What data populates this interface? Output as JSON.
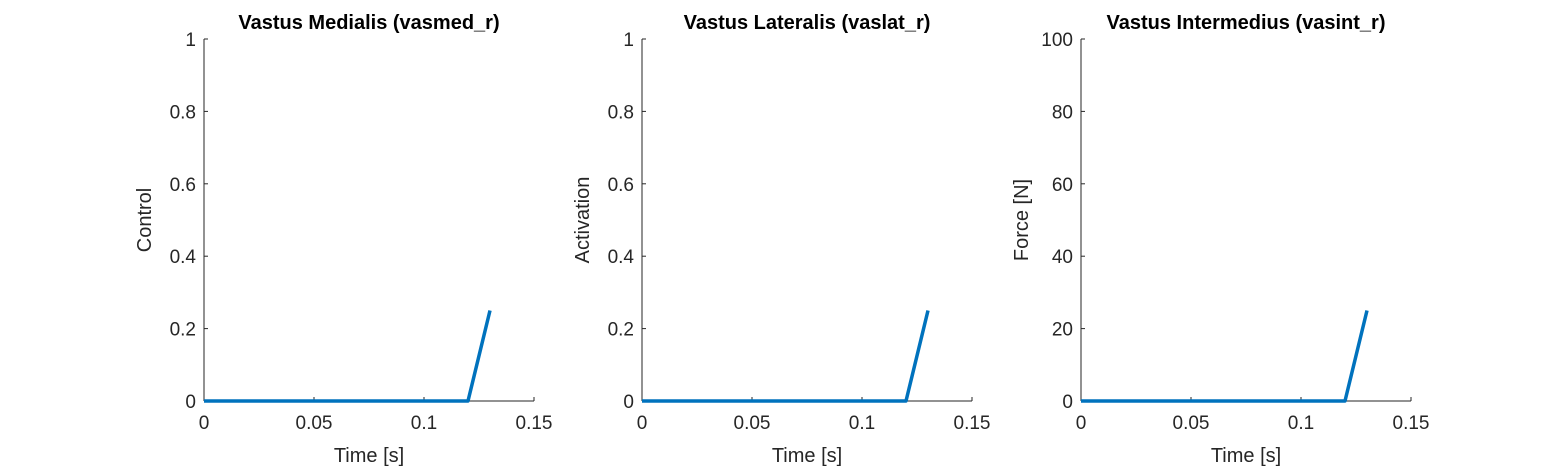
{
  "chart_data": [
    {
      "type": "line",
      "title": "Vastus Medialis (vasmed_r)",
      "xlabel": "Time [s]",
      "ylabel": "Control",
      "xlim": [
        0,
        0.15
      ],
      "ylim": [
        0,
        1
      ],
      "xticks": [
        0,
        0.05,
        0.1,
        0.15
      ],
      "xtick_labels": [
        "0",
        "0.05",
        "0.1",
        "0.15"
      ],
      "yticks": [
        0,
        0.2,
        0.4,
        0.6,
        0.8,
        1
      ],
      "ytick_labels": [
        "0",
        "0.2",
        "0.4",
        "0.6",
        "0.8",
        "1"
      ],
      "grid": false,
      "color": "#0072BD",
      "series": [
        {
          "x": [
            0,
            0.12,
            0.13
          ],
          "y": [
            0,
            0,
            0.25
          ]
        }
      ]
    },
    {
      "type": "line",
      "title": "Vastus Lateralis (vaslat_r)",
      "xlabel": "Time [s]",
      "ylabel": "Activation",
      "xlim": [
        0,
        0.15
      ],
      "ylim": [
        0,
        1
      ],
      "xticks": [
        0,
        0.05,
        0.1,
        0.15
      ],
      "xtick_labels": [
        "0",
        "0.05",
        "0.1",
        "0.15"
      ],
      "yticks": [
        0,
        0.2,
        0.4,
        0.6,
        0.8,
        1
      ],
      "ytick_labels": [
        "0",
        "0.2",
        "0.4",
        "0.6",
        "0.8",
        "1"
      ],
      "grid": false,
      "color": "#0072BD",
      "series": [
        {
          "x": [
            0,
            0.12,
            0.13
          ],
          "y": [
            0,
            0,
            0.25
          ]
        }
      ]
    },
    {
      "type": "line",
      "title": "Vastus Intermedius (vasint_r)",
      "xlabel": "Time [s]",
      "ylabel": "Force [N]",
      "xlim": [
        0,
        0.15
      ],
      "ylim": [
        0,
        100
      ],
      "xticks": [
        0,
        0.05,
        0.1,
        0.15
      ],
      "xtick_labels": [
        "0",
        "0.05",
        "0.1",
        "0.15"
      ],
      "yticks": [
        0,
        20,
        40,
        60,
        80,
        100
      ],
      "ytick_labels": [
        "0",
        "20",
        "40",
        "60",
        "80",
        "100"
      ],
      "grid": false,
      "color": "#0072BD",
      "series": [
        {
          "x": [
            0,
            0.12,
            0.13
          ],
          "y": [
            0,
            0,
            25
          ]
        }
      ]
    }
  ]
}
